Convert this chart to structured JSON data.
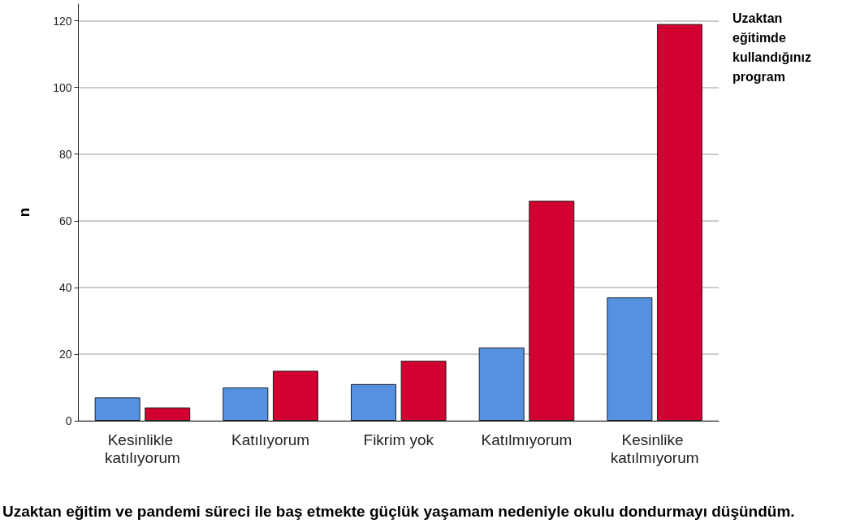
{
  "chart_data": {
    "type": "bar",
    "xlabel": "Uzaktan eğitim ve pandemi süreci ile baş etmekte güçlük yaşamam nedeniyle okulu dondurmayı düşündüm.",
    "ylabel": "n",
    "legend_title": "Uzaktan eğitimde kullandığınız program",
    "categories": [
      "Kesinlikle katılıyorum",
      "Katılıyorum",
      "Fikrim yok",
      "Katılmıyorum",
      "Kesinlike katılmıyorum"
    ],
    "series": [
      {
        "color": "#5591e0",
        "values": [
          7,
          10,
          11,
          22,
          37
        ]
      },
      {
        "color": "#d20030",
        "values": [
          4,
          15,
          18,
          66,
          119
        ]
      }
    ],
    "ylim": [
      0,
      125
    ],
    "yticks": [
      0,
      20,
      40,
      60,
      80,
      100,
      120
    ],
    "grid": "y"
  }
}
